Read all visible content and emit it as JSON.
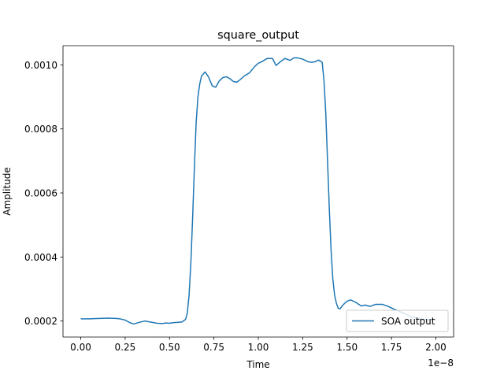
{
  "chart_data": {
    "type": "line",
    "title": "square_output",
    "xlabel": "Time",
    "ylabel": "Amplitude",
    "x_offset_label": "1e−8",
    "xlim": [
      -0.1,
      2.1
    ],
    "ylim": [
      0.00015,
      0.00106
    ],
    "grid": false,
    "legend_position": "lower-right",
    "xticks": [
      {
        "value": 0.0,
        "label": "0.00"
      },
      {
        "value": 0.25,
        "label": "0.25"
      },
      {
        "value": 0.5,
        "label": "0.50"
      },
      {
        "value": 0.75,
        "label": "0.75"
      },
      {
        "value": 1.0,
        "label": "1.00"
      },
      {
        "value": 1.25,
        "label": "1.25"
      },
      {
        "value": 1.5,
        "label": "1.50"
      },
      {
        "value": 1.75,
        "label": "1.75"
      },
      {
        "value": 2.0,
        "label": "2.00"
      }
    ],
    "yticks": [
      {
        "value": 0.0002,
        "label": "0.0002"
      },
      {
        "value": 0.0004,
        "label": "0.0004"
      },
      {
        "value": 0.0006,
        "label": "0.0006"
      },
      {
        "value": 0.0008,
        "label": "0.0008"
      },
      {
        "value": 0.001,
        "label": "0.0010"
      }
    ],
    "series": [
      {
        "name": "SOA output",
        "color": "#1f77b4",
        "x": [
          0.0,
          0.05,
          0.1,
          0.15,
          0.2,
          0.22,
          0.25,
          0.28,
          0.3,
          0.33,
          0.36,
          0.4,
          0.43,
          0.46,
          0.48,
          0.5,
          0.52,
          0.55,
          0.57,
          0.59,
          0.6,
          0.61,
          0.62,
          0.63,
          0.64,
          0.65,
          0.66,
          0.67,
          0.68,
          0.7,
          0.72,
          0.74,
          0.76,
          0.78,
          0.8,
          0.82,
          0.84,
          0.86,
          0.88,
          0.9,
          0.92,
          0.95,
          0.98,
          1.0,
          1.02,
          1.05,
          1.08,
          1.1,
          1.12,
          1.15,
          1.18,
          1.2,
          1.22,
          1.25,
          1.28,
          1.3,
          1.32,
          1.34,
          1.36,
          1.37,
          1.38,
          1.39,
          1.4,
          1.41,
          1.42,
          1.43,
          1.44,
          1.45,
          1.46,
          1.47,
          1.48,
          1.5,
          1.52,
          1.55,
          1.58,
          1.6,
          1.63,
          1.66,
          1.7,
          1.73,
          1.76,
          1.8,
          1.83,
          1.86,
          1.9,
          1.95,
          2.0
        ],
        "y": [
          0.000207,
          0.000207,
          0.000208,
          0.000209,
          0.000208,
          0.000207,
          0.000203,
          0.000194,
          0.000191,
          0.000196,
          0.0002,
          0.000196,
          0.000193,
          0.000192,
          0.000194,
          0.000193,
          0.000195,
          0.000196,
          0.000197,
          0.000205,
          0.000225,
          0.00028,
          0.00038,
          0.00052,
          0.00068,
          0.00082,
          0.0009,
          0.00094,
          0.000965,
          0.000978,
          0.000962,
          0.000935,
          0.00093,
          0.00095,
          0.00096,
          0.000963,
          0.000957,
          0.000948,
          0.000946,
          0.000955,
          0.000965,
          0.000975,
          0.000995,
          0.001005,
          0.00101,
          0.00102,
          0.00102,
          0.000998,
          0.001008,
          0.00102,
          0.001014,
          0.001022,
          0.001022,
          0.001018,
          0.00101,
          0.001008,
          0.00101,
          0.001015,
          0.001008,
          0.00095,
          0.00085,
          0.0007,
          0.00055,
          0.00042,
          0.00033,
          0.00028,
          0.000255,
          0.00024,
          0.000238,
          0.000245,
          0.000252,
          0.000262,
          0.000266,
          0.000258,
          0.000247,
          0.00025,
          0.000246,
          0.000252,
          0.000252,
          0.000246,
          0.000238,
          0.000229,
          0.000222,
          0.000213,
          0.000208,
          0.000204,
          0.000203
        ]
      }
    ]
  }
}
